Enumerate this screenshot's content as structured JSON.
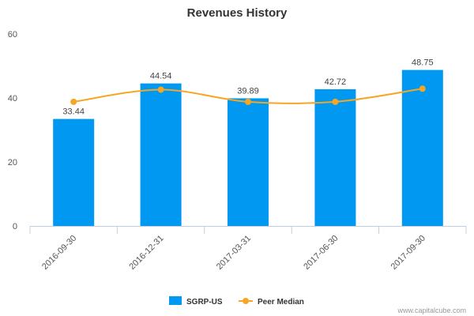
{
  "chart_data": {
    "type": "bar",
    "title": "Revenues History",
    "categories": [
      "2016-09-30",
      "2016-12-31",
      "2017-03-31",
      "2017-06-30",
      "2017-09-30"
    ],
    "series": [
      {
        "name": "SGRP-US",
        "type": "bar",
        "values": [
          33.44,
          44.54,
          39.89,
          42.72,
          48.75
        ],
        "labels": [
          "33.44",
          "44.54",
          "39.89",
          "42.72",
          "48.75"
        ],
        "color": "#0098f0"
      },
      {
        "name": "Peer Median",
        "type": "line",
        "values": [
          38.8,
          42.6,
          38.8,
          38.8,
          42.9
        ],
        "color": "#f5a623"
      }
    ],
    "y_ticks": [
      "0",
      "20",
      "40",
      "60"
    ],
    "ylim": [
      0,
      60
    ],
    "grid": false,
    "legend_position": "bottom-center"
  },
  "credit": "www.capitalcube.com"
}
